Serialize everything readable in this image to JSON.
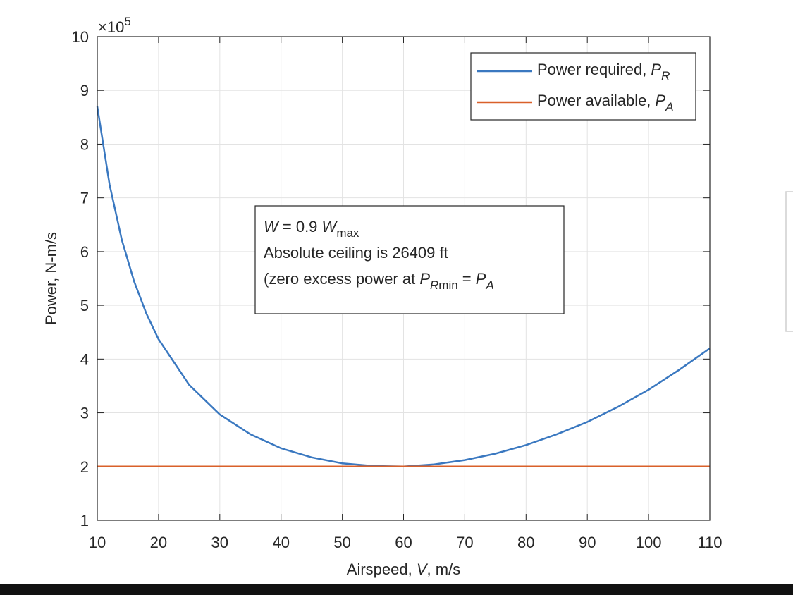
{
  "chart_data": {
    "type": "line",
    "multiplier": [
      {
        "text": "×10",
        "style": "normal"
      },
      {
        "text": "5",
        "style": "sup"
      }
    ],
    "x_label": [
      {
        "text": "Airspeed, ",
        "style": "normal"
      },
      {
        "text": "V",
        "style": "italic"
      },
      {
        "text": ", m/s",
        "style": "normal"
      }
    ],
    "y_label": [
      {
        "text": "Power, N-m/s",
        "style": "normal"
      }
    ],
    "annotation": [
      [
        {
          "text": "W",
          "style": "italic"
        },
        {
          "text": " = 0.9 ",
          "style": "normal"
        },
        {
          "text": "W",
          "style": "italic"
        },
        {
          "text": "max",
          "style": "sub"
        }
      ],
      [
        {
          "text": "Absolute ceiling is 26409 ft",
          "style": "normal"
        }
      ],
      [
        {
          "text": "(zero excess power at ",
          "style": "normal"
        },
        {
          "text": "P",
          "style": "italic"
        },
        {
          "text": "R",
          "style": "italic-sub"
        },
        {
          "text": "min",
          "style": "sub"
        },
        {
          "text": " = ",
          "style": "normal"
        },
        {
          "text": "P",
          "style": "italic"
        },
        {
          "text": "A",
          "style": "italic-sub"
        }
      ]
    ],
    "legend_position": "upper right",
    "grid": true,
    "xlim": [
      10,
      110
    ],
    "xticks": [
      10,
      20,
      30,
      40,
      50,
      60,
      70,
      80,
      90,
      100,
      110
    ],
    "ylim": [
      1,
      10
    ],
    "yticks": [
      1,
      2,
      3,
      4,
      5,
      6,
      7,
      8,
      9,
      10
    ],
    "x": [
      10,
      12,
      14,
      16,
      18,
      20,
      25,
      30,
      35,
      40,
      45,
      50,
      55,
      60,
      65,
      70,
      75,
      80,
      85,
      90,
      95,
      100,
      105,
      110
    ],
    "series": [
      {
        "name": [
          {
            "text": "Power required, ",
            "style": "normal"
          },
          {
            "text": "P",
            "style": "italic"
          },
          {
            "text": "R",
            "style": "italic-sub"
          }
        ],
        "color": "#3a78c0",
        "values": [
          8.7,
          7.25,
          6.22,
          5.45,
          4.85,
          4.37,
          3.52,
          2.97,
          2.6,
          2.34,
          2.17,
          2.06,
          2.01,
          2.0,
          2.04,
          2.12,
          2.24,
          2.4,
          2.6,
          2.83,
          3.11,
          3.43,
          3.8,
          4.2
        ]
      },
      {
        "name": [
          {
            "text": "Power available, ",
            "style": "normal"
          },
          {
            "text": "P",
            "style": "italic"
          },
          {
            "text": "A",
            "style": "italic-sub"
          }
        ],
        "color": "#d9602a",
        "values": [
          2,
          2,
          2,
          2,
          2,
          2,
          2,
          2,
          2,
          2,
          2,
          2,
          2,
          2,
          2,
          2,
          2,
          2,
          2,
          2,
          2,
          2,
          2,
          2
        ]
      }
    ]
  }
}
